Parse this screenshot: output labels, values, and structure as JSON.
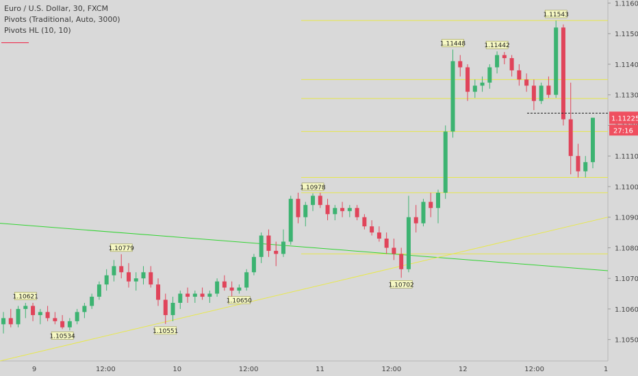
{
  "legend": {
    "symbol": "Euro / U.S. Dollar, 30, FXCM",
    "pivots": "Pivots (Traditional, Auto, 3000)",
    "pivots_hl": "Pivots HL (10, 10)"
  },
  "colors": {
    "background": "#d9d9d9",
    "up_candle": "#3cb371",
    "down_candle": "#e0445a",
    "pivot_line": "#e6e64a",
    "trendline_green": "#31d431",
    "trendline_yellow": "#e8e84a",
    "price_badge": "#ef4f5f",
    "label_bg": "#f6f8c4"
  },
  "chart_data": {
    "type": "candlestick",
    "symbol": "Euro / U.S. Dollar",
    "timeframe": "30",
    "source": "FXCM",
    "y_axis": {
      "ticks": [
        "1.11600",
        "1.11500",
        "1.11400",
        "1.11300",
        "1.11200",
        "1.11100",
        "1.11000",
        "1.10900",
        "1.10800",
        "1.10700",
        "1.10600",
        "1.10500"
      ],
      "ylim": [
        1.1043,
        1.1161
      ]
    },
    "x_axis": {
      "ticks": [
        "9",
        "12:00",
        "10",
        "12:00",
        "11",
        "12:00",
        "12",
        "12:00",
        "1"
      ]
    },
    "current_price": "1.11225",
    "countdown": "27:16",
    "pivot_hl_labels": [
      {
        "label": "1.10621",
        "price": 1.10621,
        "type": "high"
      },
      {
        "label": "1.10534",
        "price": 1.10534,
        "type": "low"
      },
      {
        "label": "1.10779",
        "price": 1.10779,
        "type": "high"
      },
      {
        "label": "1.10551",
        "price": 1.10551,
        "type": "low"
      },
      {
        "label": "1.10650",
        "price": 1.1065,
        "type": "low"
      },
      {
        "label": "1.10978",
        "price": 1.10978,
        "type": "high"
      },
      {
        "label": "1.10702",
        "price": 1.10702,
        "type": "low"
      },
      {
        "label": "1.11448",
        "price": 1.11448,
        "type": "high"
      },
      {
        "label": "1.11442",
        "price": 1.11442,
        "type": "high"
      },
      {
        "label": "1.11543",
        "price": 1.11543,
        "type": "high"
      }
    ],
    "pivot_levels": [
      {
        "price": 1.11543
      },
      {
        "price": 1.1135
      },
      {
        "price": 1.11288
      },
      {
        "price": 1.1118
      },
      {
        "price": 1.1103
      },
      {
        "price": 1.1098
      },
      {
        "price": 1.1078
      }
    ],
    "candles": [
      {
        "o": 1.1055,
        "h": 1.1059,
        "l": 1.1052,
        "c": 1.1057
      },
      {
        "o": 1.1057,
        "h": 1.106,
        "l": 1.1054,
        "c": 1.1055
      },
      {
        "o": 1.1055,
        "h": 1.1061,
        "l": 1.1054,
        "c": 1.106
      },
      {
        "o": 1.106,
        "h": 1.1062,
        "l": 1.1057,
        "c": 1.1061
      },
      {
        "o": 1.1061,
        "h": 1.1062,
        "l": 1.1056,
        "c": 1.1058
      },
      {
        "o": 1.1058,
        "h": 1.106,
        "l": 1.1055,
        "c": 1.1059
      },
      {
        "o": 1.1059,
        "h": 1.1061,
        "l": 1.1056,
        "c": 1.1057
      },
      {
        "o": 1.1057,
        "h": 1.1059,
        "l": 1.1055,
        "c": 1.1056
      },
      {
        "o": 1.1056,
        "h": 1.1058,
        "l": 1.10534,
        "c": 1.1054
      },
      {
        "o": 1.1054,
        "h": 1.1057,
        "l": 1.1053,
        "c": 1.1056
      },
      {
        "o": 1.1056,
        "h": 1.106,
        "l": 1.1055,
        "c": 1.1059
      },
      {
        "o": 1.1059,
        "h": 1.1062,
        "l": 1.1057,
        "c": 1.1061
      },
      {
        "o": 1.1061,
        "h": 1.1065,
        "l": 1.106,
        "c": 1.1064
      },
      {
        "o": 1.1064,
        "h": 1.1069,
        "l": 1.1063,
        "c": 1.1068
      },
      {
        "o": 1.1068,
        "h": 1.1073,
        "l": 1.1066,
        "c": 1.1071
      },
      {
        "o": 1.1071,
        "h": 1.1076,
        "l": 1.1069,
        "c": 1.1074
      },
      {
        "o": 1.1074,
        "h": 1.10779,
        "l": 1.107,
        "c": 1.1072
      },
      {
        "o": 1.1072,
        "h": 1.1075,
        "l": 1.1067,
        "c": 1.1069
      },
      {
        "o": 1.1069,
        "h": 1.1072,
        "l": 1.1066,
        "c": 1.107
      },
      {
        "o": 1.107,
        "h": 1.1074,
        "l": 1.1068,
        "c": 1.1072
      },
      {
        "o": 1.1072,
        "h": 1.1074,
        "l": 1.1067,
        "c": 1.1068
      },
      {
        "o": 1.1068,
        "h": 1.107,
        "l": 1.1061,
        "c": 1.1063
      },
      {
        "o": 1.1063,
        "h": 1.1065,
        "l": 1.10551,
        "c": 1.1058
      },
      {
        "o": 1.1058,
        "h": 1.1064,
        "l": 1.1056,
        "c": 1.1062
      },
      {
        "o": 1.1062,
        "h": 1.1066,
        "l": 1.106,
        "c": 1.1065
      },
      {
        "o": 1.1065,
        "h": 1.1067,
        "l": 1.1062,
        "c": 1.1064
      },
      {
        "o": 1.1064,
        "h": 1.1066,
        "l": 1.1062,
        "c": 1.1065
      },
      {
        "o": 1.1065,
        "h": 1.1067,
        "l": 1.1063,
        "c": 1.1064
      },
      {
        "o": 1.1064,
        "h": 1.1066,
        "l": 1.1062,
        "c": 1.1065
      },
      {
        "o": 1.1065,
        "h": 1.107,
        "l": 1.1064,
        "c": 1.1069
      },
      {
        "o": 1.1069,
        "h": 1.1071,
        "l": 1.1066,
        "c": 1.1067
      },
      {
        "o": 1.1067,
        "h": 1.1069,
        "l": 1.1064,
        "c": 1.1066
      },
      {
        "o": 1.1066,
        "h": 1.1068,
        "l": 1.1065,
        "c": 1.1067
      },
      {
        "o": 1.1067,
        "h": 1.1073,
        "l": 1.1066,
        "c": 1.1072
      },
      {
        "o": 1.1072,
        "h": 1.1078,
        "l": 1.1071,
        "c": 1.1077
      },
      {
        "o": 1.1077,
        "h": 1.1085,
        "l": 1.1075,
        "c": 1.1084
      },
      {
        "o": 1.1084,
        "h": 1.1086,
        "l": 1.1077,
        "c": 1.1079
      },
      {
        "o": 1.1079,
        "h": 1.1082,
        "l": 1.1074,
        "c": 1.1078
      },
      {
        "o": 1.1078,
        "h": 1.1086,
        "l": 1.1077,
        "c": 1.1082
      },
      {
        "o": 1.1082,
        "h": 1.1097,
        "l": 1.1081,
        "c": 1.1096
      },
      {
        "o": 1.1096,
        "h": 1.1098,
        "l": 1.1088,
        "c": 1.109
      },
      {
        "o": 1.109,
        "h": 1.1095,
        "l": 1.1087,
        "c": 1.1094
      },
      {
        "o": 1.1094,
        "h": 1.10978,
        "l": 1.1092,
        "c": 1.1097
      },
      {
        "o": 1.1097,
        "h": 1.1098,
        "l": 1.1093,
        "c": 1.1094
      },
      {
        "o": 1.1094,
        "h": 1.1096,
        "l": 1.1089,
        "c": 1.1091
      },
      {
        "o": 1.1091,
        "h": 1.1094,
        "l": 1.1089,
        "c": 1.1093
      },
      {
        "o": 1.1093,
        "h": 1.1095,
        "l": 1.109,
        "c": 1.1092
      },
      {
        "o": 1.1092,
        "h": 1.1094,
        "l": 1.109,
        "c": 1.1093
      },
      {
        "o": 1.1093,
        "h": 1.1094,
        "l": 1.1089,
        "c": 1.109
      },
      {
        "o": 1.109,
        "h": 1.1091,
        "l": 1.1086,
        "c": 1.1087
      },
      {
        "o": 1.1087,
        "h": 1.1089,
        "l": 1.1084,
        "c": 1.1085
      },
      {
        "o": 1.1085,
        "h": 1.1087,
        "l": 1.1082,
        "c": 1.1083
      },
      {
        "o": 1.1083,
        "h": 1.1085,
        "l": 1.1078,
        "c": 1.108
      },
      {
        "o": 1.108,
        "h": 1.1083,
        "l": 1.1076,
        "c": 1.1078
      },
      {
        "o": 1.1078,
        "h": 1.108,
        "l": 1.10702,
        "c": 1.1073
      },
      {
        "o": 1.1073,
        "h": 1.1097,
        "l": 1.1072,
        "c": 1.109
      },
      {
        "o": 1.109,
        "h": 1.1094,
        "l": 1.1085,
        "c": 1.1088
      },
      {
        "o": 1.1088,
        "h": 1.1096,
        "l": 1.1087,
        "c": 1.1095
      },
      {
        "o": 1.1095,
        "h": 1.1098,
        "l": 1.109,
        "c": 1.1093
      },
      {
        "o": 1.1093,
        "h": 1.1099,
        "l": 1.1088,
        "c": 1.1098
      },
      {
        "o": 1.1098,
        "h": 1.112,
        "l": 1.1096,
        "c": 1.1118
      },
      {
        "o": 1.1118,
        "h": 1.11448,
        "l": 1.1116,
        "c": 1.1141
      },
      {
        "o": 1.1141,
        "h": 1.1143,
        "l": 1.1136,
        "c": 1.1139
      },
      {
        "o": 1.1139,
        "h": 1.114,
        "l": 1.1128,
        "c": 1.1131
      },
      {
        "o": 1.1131,
        "h": 1.1135,
        "l": 1.1129,
        "c": 1.1133
      },
      {
        "o": 1.1133,
        "h": 1.1136,
        "l": 1.1131,
        "c": 1.1134
      },
      {
        "o": 1.1134,
        "h": 1.114,
        "l": 1.1132,
        "c": 1.1139
      },
      {
        "o": 1.1139,
        "h": 1.11442,
        "l": 1.1137,
        "c": 1.1143
      },
      {
        "o": 1.1143,
        "h": 1.1144,
        "l": 1.114,
        "c": 1.1142
      },
      {
        "o": 1.1142,
        "h": 1.1143,
        "l": 1.1136,
        "c": 1.1138
      },
      {
        "o": 1.1138,
        "h": 1.114,
        "l": 1.1133,
        "c": 1.1135
      },
      {
        "o": 1.1135,
        "h": 1.1137,
        "l": 1.1131,
        "c": 1.1133
      },
      {
        "o": 1.1133,
        "h": 1.1135,
        "l": 1.1125,
        "c": 1.1128
      },
      {
        "o": 1.1128,
        "h": 1.1134,
        "l": 1.1127,
        "c": 1.1133
      },
      {
        "o": 1.1133,
        "h": 1.1136,
        "l": 1.1129,
        "c": 1.113
      },
      {
        "o": 1.113,
        "h": 1.11543,
        "l": 1.1129,
        "c": 1.1152
      },
      {
        "o": 1.1152,
        "h": 1.1153,
        "l": 1.112,
        "c": 1.1122
      },
      {
        "o": 1.1122,
        "h": 1.1134,
        "l": 1.1104,
        "c": 1.111
      },
      {
        "o": 1.111,
        "h": 1.1114,
        "l": 1.1103,
        "c": 1.1105
      },
      {
        "o": 1.1105,
        "h": 1.111,
        "l": 1.1103,
        "c": 1.1108
      },
      {
        "o": 1.1108,
        "h": 1.11225,
        "l": 1.1106,
        "c": 1.11225
      }
    ],
    "trendlines": [
      {
        "color": "green",
        "from_price": 1.1088,
        "to_price": 1.10725
      },
      {
        "color": "yellow",
        "from_price": 1.1043,
        "to_price": 1.109
      }
    ]
  }
}
